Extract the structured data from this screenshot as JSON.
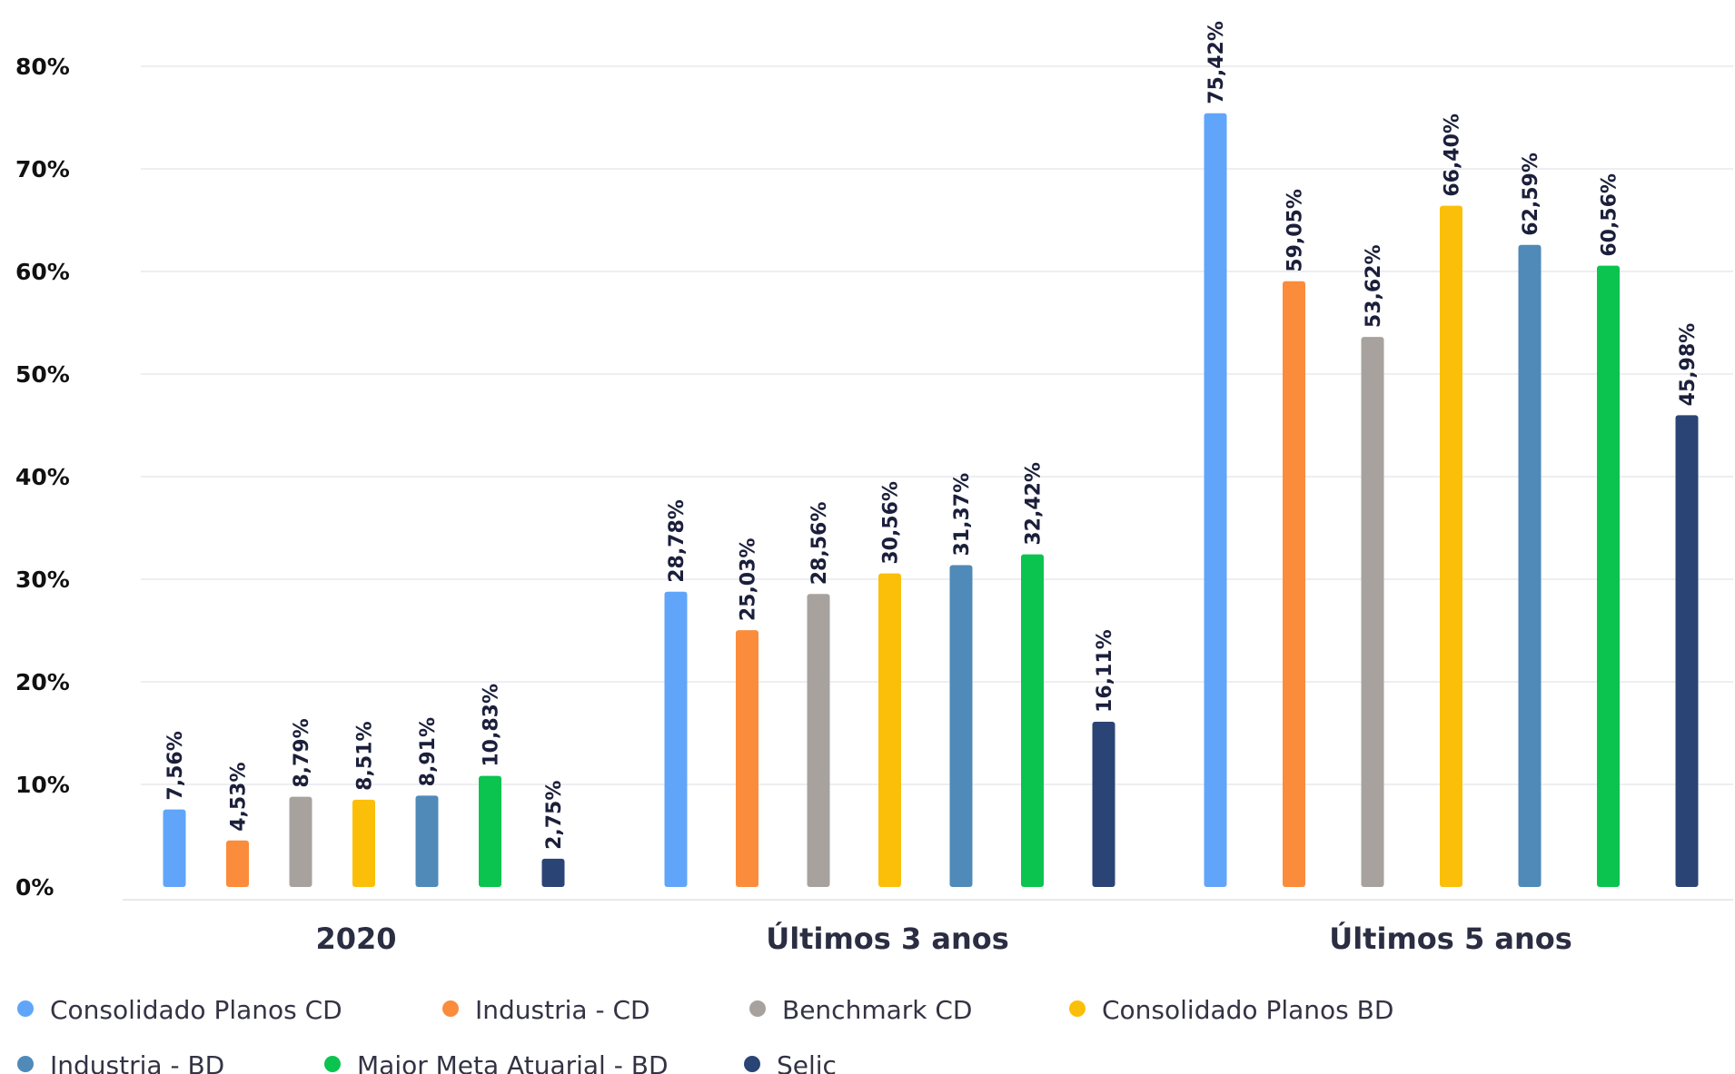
{
  "chart_data": {
    "type": "bar",
    "title": "",
    "xlabel": "",
    "ylabel": "",
    "ylim": [
      0,
      80
    ],
    "y_ticks": [
      "0%",
      "10%",
      "20%",
      "30%",
      "40%",
      "50%",
      "60%",
      "70%",
      "80%"
    ],
    "y_tick_values": [
      0,
      10,
      20,
      30,
      40,
      50,
      60,
      70,
      80
    ],
    "grid": true,
    "legend_position": "bottom",
    "categories": [
      "2020",
      "Últimos 3 anos",
      "Últimos 5 anos"
    ],
    "series": [
      {
        "name": "Consolidado Planos CD",
        "color": "#60a5fa",
        "values": [
          7.56,
          28.78,
          75.42
        ],
        "labels": [
          "7,56%",
          "28,78%",
          "75,42%"
        ]
      },
      {
        "name": "Industria - CD",
        "color": "#fb8c3c",
        "values": [
          4.53,
          25.03,
          59.05
        ],
        "labels": [
          "4,53%",
          "25,03%",
          "59,05%"
        ]
      },
      {
        "name": "Benchmark CD",
        "color": "#a8a29e",
        "values": [
          8.79,
          28.56,
          53.62
        ],
        "labels": [
          "8,79%",
          "28,56%",
          "53,62%"
        ]
      },
      {
        "name": "Consolidado Planos BD",
        "color": "#fbbf0a",
        "values": [
          8.51,
          30.56,
          66.4
        ],
        "labels": [
          "8,51%",
          "30,56%",
          "66,40%"
        ]
      },
      {
        "name": "Industria - BD",
        "color": "#4f8ab8",
        "values": [
          8.91,
          31.37,
          62.59
        ],
        "labels": [
          "8,91%",
          "31,37%",
          "62,59%"
        ]
      },
      {
        "name": "Maior Meta Atuarial - BD",
        "color": "#0bc44f",
        "values": [
          10.83,
          32.42,
          60.56
        ],
        "labels": [
          "10,83%",
          "32,42%",
          "60,56%"
        ]
      },
      {
        "name": "Selic",
        "color": "#2a4475",
        "values": [
          2.75,
          16.11,
          45.98
        ],
        "labels": [
          "2,75%",
          "16,11%",
          "45,98%"
        ]
      }
    ]
  }
}
